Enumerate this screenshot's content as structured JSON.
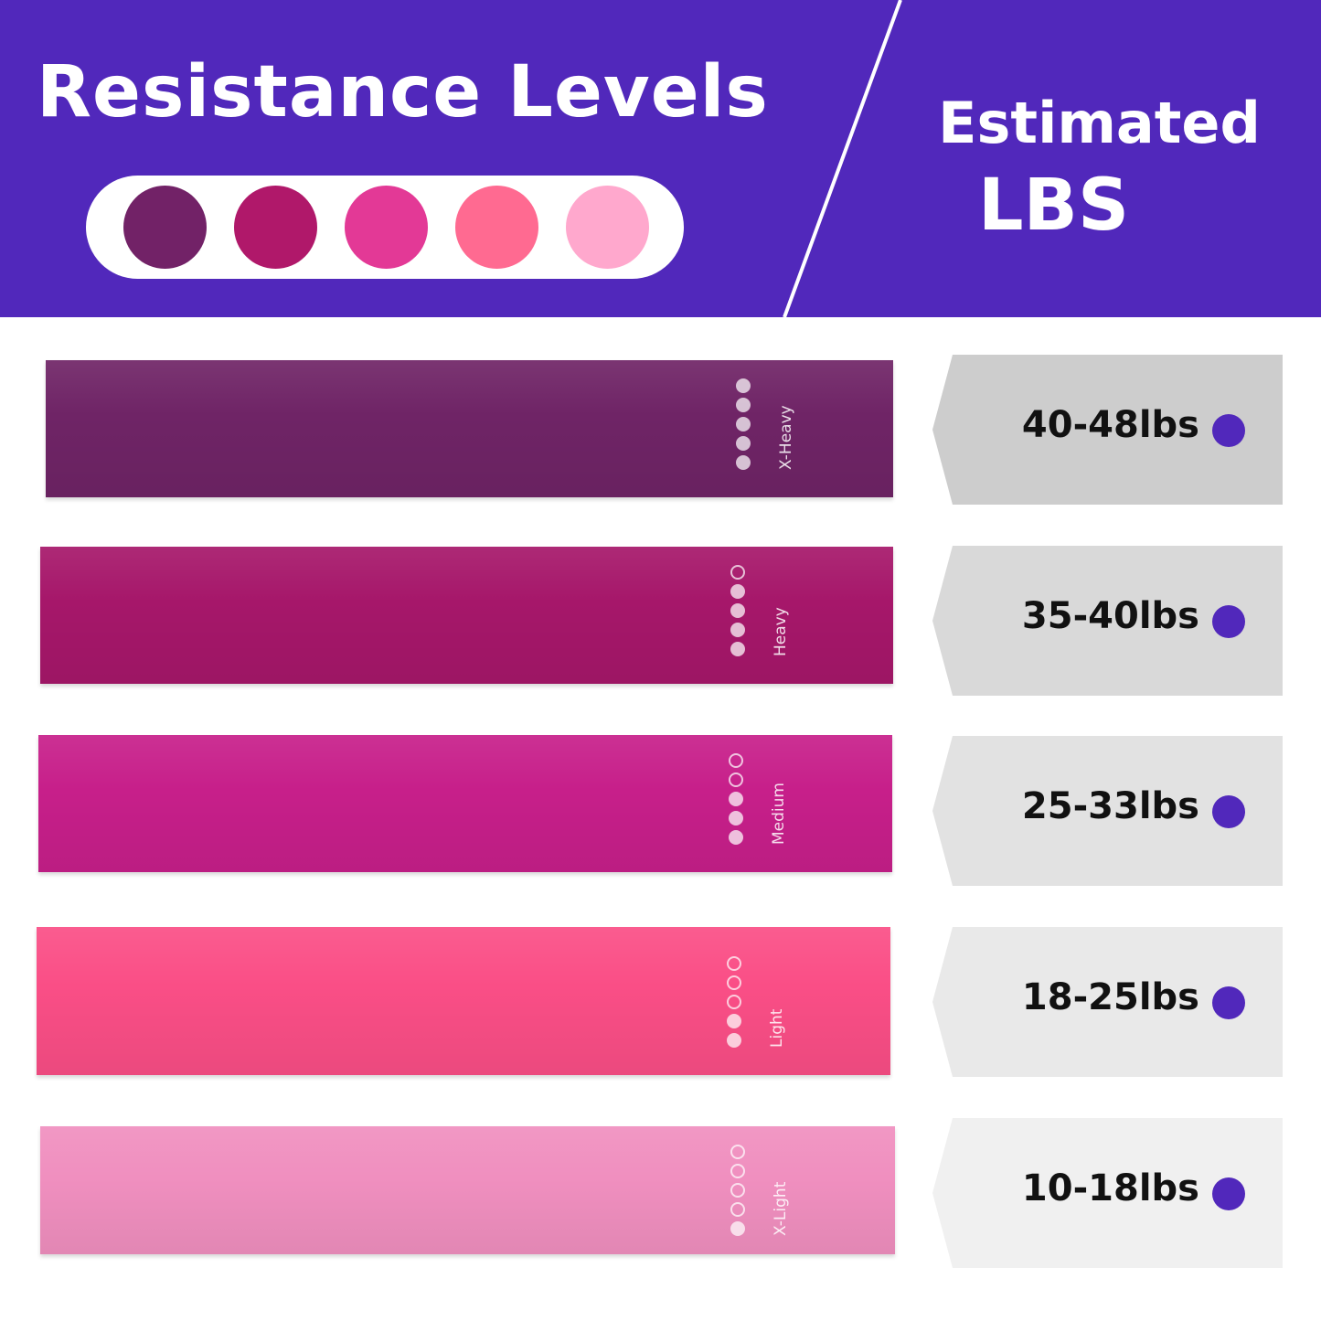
{
  "header": {
    "title": "Resistance Levels",
    "estimated_line1": "Estimated",
    "estimated_line2": "LBS",
    "background_color": "#5128bb",
    "swatches": [
      "#722267",
      "#b0186a",
      "#e33996",
      "#ff6a91",
      "#ffa8cd"
    ]
  },
  "bands": [
    {
      "label": "X-Heavy",
      "color": "#6f2466",
      "filled_dots": 5,
      "range": "40-48lbs",
      "tag_color": "#cdcdcd"
    },
    {
      "label": "Heavy",
      "color": "#a6176a",
      "filled_dots": 4,
      "range": "35-40lbs",
      "tag_color": "#d9d9d9"
    },
    {
      "label": "Medium",
      "color": "#c71f8a",
      "filled_dots": 3,
      "range": "25-33lbs",
      "tag_color": "#e2e2e2"
    },
    {
      "label": "Light",
      "color": "#fa4e86",
      "filled_dots": 2,
      "range": "18-25lbs",
      "tag_color": "#e9e9e9"
    },
    {
      "label": "X-Light",
      "color": "#f08fbf",
      "filled_dots": 1,
      "range": "10-18lbs",
      "tag_color": "#f0f0f0"
    }
  ],
  "accent_dot_color": "#5128bb"
}
